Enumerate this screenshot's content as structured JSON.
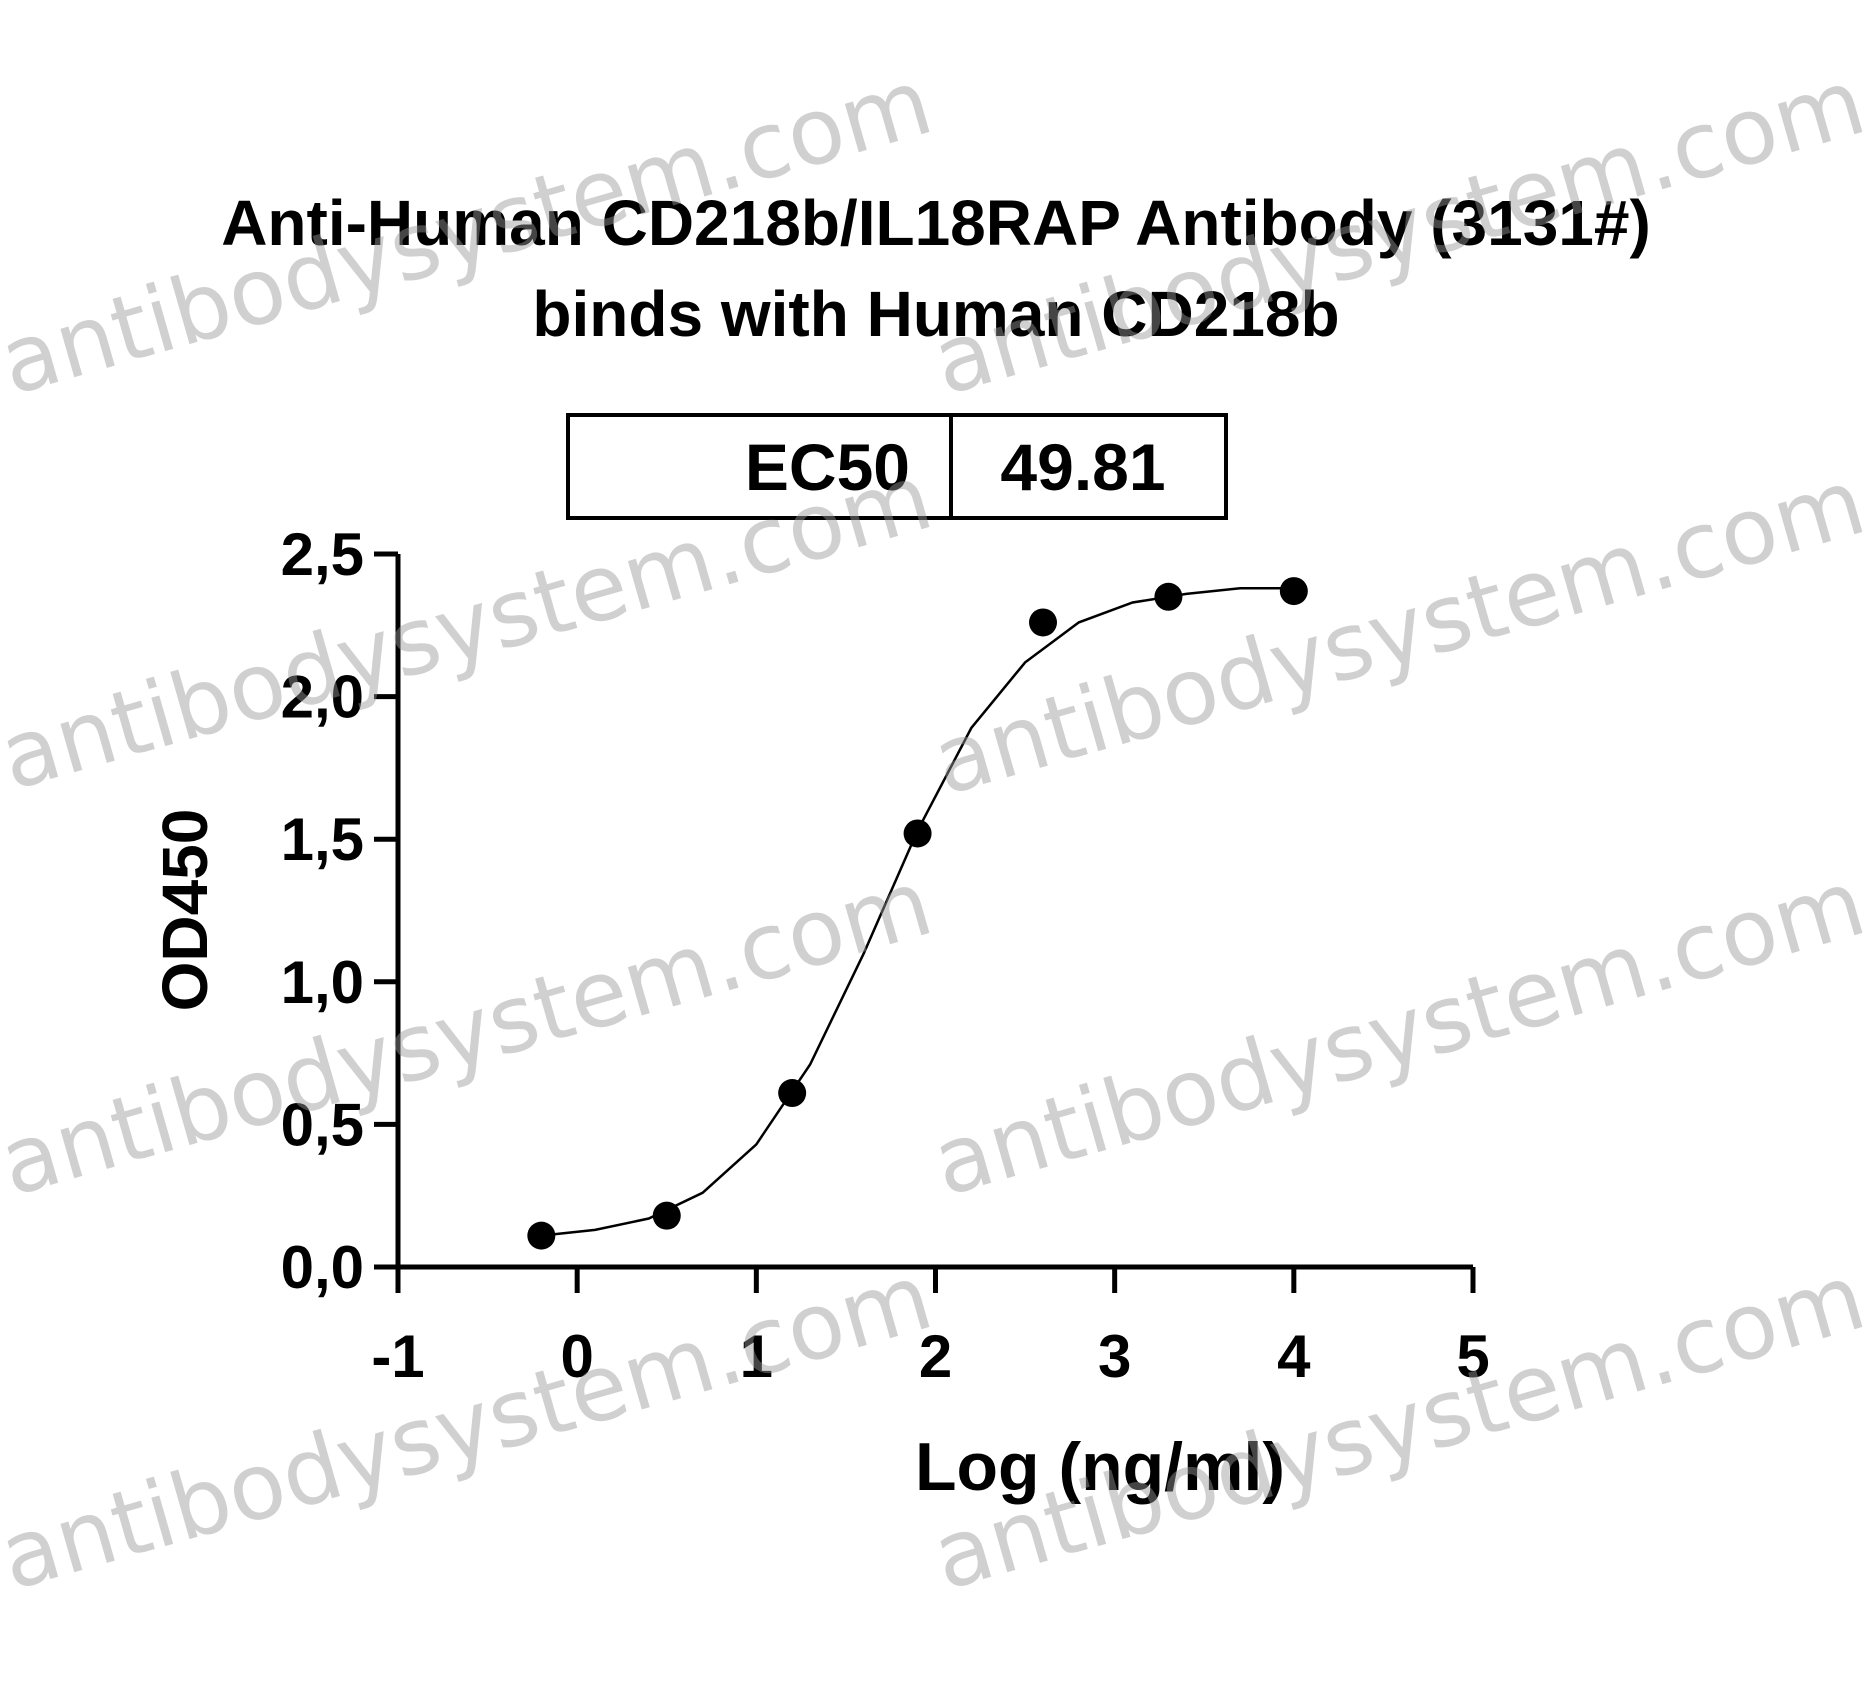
{
  "chart_data": {
    "type": "scatter",
    "title": [
      "Anti-Human CD218b/IL18RAP Antibody (3131#)",
      "binds with Human CD218b"
    ],
    "annotation": {
      "label": "EC50",
      "value": 49.81
    },
    "x_label": "Log (ng/ml)",
    "y_label": "OD450",
    "x": [
      -0.2,
      0.5,
      1.2,
      1.9,
      2.6,
      3.3,
      4.0
    ],
    "values": [
      0.11,
      0.18,
      0.61,
      1.52,
      2.26,
      2.35,
      2.37
    ],
    "color": "#000000",
    "fit": {
      "x": [
        -0.2,
        0.1,
        0.4,
        0.7,
        1.0,
        1.3,
        1.6,
        1.9,
        2.2,
        2.5,
        2.8,
        3.1,
        3.4,
        3.7,
        4.0
      ],
      "values": [
        0.11,
        0.13,
        0.17,
        0.26,
        0.43,
        0.71,
        1.1,
        1.53,
        1.89,
        2.12,
        2.26,
        2.33,
        2.36,
        2.38,
        2.38
      ]
    },
    "xlim": [
      -1,
      5
    ],
    "xticks": [
      -1,
      0,
      1,
      2,
      3,
      4,
      5
    ],
    "ylim": [
      0,
      2.5
    ],
    "yticks": [
      {
        "value": 0,
        "label": "0,0"
      },
      {
        "value": 0.5,
        "label": "0,5"
      },
      {
        "value": 1,
        "label": "1,0"
      },
      {
        "value": 1.5,
        "label": "1,5"
      },
      {
        "value": 2,
        "label": "2,0"
      },
      {
        "value": 2.5,
        "label": "2,5"
      }
    ],
    "watermark": "antibodysystem.com"
  }
}
